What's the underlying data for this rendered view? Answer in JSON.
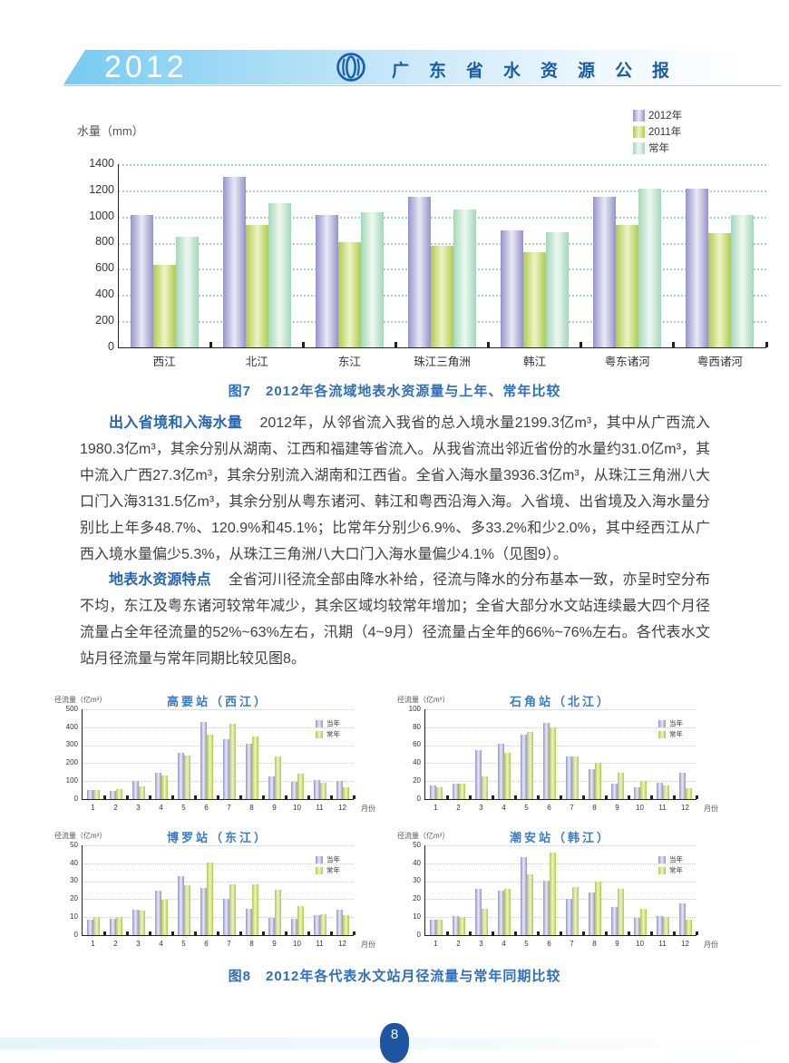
{
  "header": {
    "year": "2012",
    "title": "广东省水资源公报",
    "logo": "water-resources-logo"
  },
  "colors": {
    "accent_blue": "#1a5ca8",
    "caption_blue": "#2f6fbe",
    "lead_blue": "#2565b0",
    "grid_green": "#9fd8be",
    "footer_blue": "#1e55a3",
    "bar_purple_edge": "#9694c8",
    "bar_purple_center": "#e9e9f6",
    "bar_green_edge": "#b0cc49",
    "bar_green_center": "#eef3ca",
    "bar_teal_edge": "#a5d6b9",
    "bar_teal_center": "#edf9f1"
  },
  "captions": {
    "fig7": "图7　2012年各流域地表水资源量与上年、常年比较",
    "fig8": "图8　2012年各代表水文站月径流量与常年同期比较"
  },
  "sections": [
    {
      "lead": "出入省境和入海水量",
      "text": "2012年，从邻省流入我省的总入境水量2199.3亿m³，其中从广西流入1980.3亿m³，其余分别从湖南、江西和福建等省流入。从我省流出邻近省份的水量约31.0亿m³，其中流入广西27.3亿m³，其余分别流入湖南和江西省。全省入海水量3936.3亿m³，从珠江三角洲八大口门入海3131.5亿m³，其余分别从粤东诸河、韩江和粤西沿海入海。入省境、出省境及入海水量分别比上年多48.7%、120.9%和45.1%；比常年分别少6.9%、多33.2%和少2.0%，其中经西江从广西入境水量偏少5.3%，从珠江三角洲八大口门入海水量偏少4.1%（见图9）。"
    },
    {
      "lead": "地表水资源特点",
      "text": "全省河川径流全部由降水补给，径流与降水的分布基本一致，亦呈时空分布不均，东江及粤东诸河较常年减少，其余区域均较常年增加；全省大部分水文站连续最大四个月径流量占全年径流量的52%~63%左右，汛期（4~9月）径流量占全年的66%~76%左右。各代表水文站月径流量与常年同期比较见图8。"
    }
  ],
  "chart_data": [
    {
      "id": "fig7",
      "type": "bar",
      "title": "",
      "ylabel": "水量（mm）",
      "xlabel": "",
      "ylim": [
        0,
        1400
      ],
      "ystep": 200,
      "grid": "dotted",
      "legend_position": "top-right",
      "categories": [
        "西江",
        "北江",
        "东江",
        "珠江三角洲",
        "韩江",
        "粤东诸河",
        "粤西诸河"
      ],
      "series": [
        {
          "name": "2012年",
          "color": "purple",
          "values": [
            1015,
            1300,
            1010,
            1150,
            895,
            1150,
            1210
          ]
        },
        {
          "name": "2011年",
          "color": "green",
          "values": [
            630,
            935,
            805,
            775,
            730,
            935,
            870
          ]
        },
        {
          "name": "常年",
          "color": "teal",
          "values": [
            845,
            1100,
            1035,
            1055,
            880,
            1215,
            1010
          ]
        }
      ]
    },
    {
      "id": "fig8-gaoyao",
      "type": "bar",
      "title": "高要站（西江）",
      "ylabel": "径流量（亿m³）",
      "xlabel": "月份",
      "ylim": [
        0,
        500
      ],
      "ystep": 100,
      "grid": "dotted",
      "legend_position": "right",
      "categories": [
        "1",
        "2",
        "3",
        "4",
        "5",
        "6",
        "7",
        "8",
        "9",
        "10",
        "11",
        "12"
      ],
      "series": [
        {
          "name": "当年",
          "color": "purple",
          "values": [
            50,
            45,
            100,
            148,
            260,
            430,
            332,
            308,
            128,
            95,
            108,
            103
          ]
        },
        {
          "name": "常年",
          "color": "green",
          "values": [
            50,
            55,
            70,
            132,
            243,
            357,
            420,
            347,
            235,
            143,
            93,
            65
          ]
        }
      ]
    },
    {
      "id": "fig8-shijiao",
      "type": "bar",
      "title": "石角站（北江）",
      "ylabel": "径流量（亿m³）",
      "xlabel": "月份",
      "ylim": [
        0,
        100
      ],
      "ystep": 20,
      "grid": "dotted",
      "legend_position": "right",
      "categories": [
        "1",
        "2",
        "3",
        "4",
        "5",
        "6",
        "7",
        "8",
        "9",
        "10",
        "11",
        "12"
      ],
      "series": [
        {
          "name": "当年",
          "color": "purple",
          "values": [
            15,
            17,
            55,
            62,
            72,
            85,
            47,
            33,
            17,
            13,
            18,
            29
          ]
        },
        {
          "name": "常年",
          "color": "green",
          "values": [
            13,
            17,
            25,
            52,
            75,
            80,
            47,
            40,
            29,
            20,
            15,
            12
          ]
        }
      ]
    },
    {
      "id": "fig8-boluo",
      "type": "bar",
      "title": "博罗站（东江）",
      "ylabel": "径流量（亿m³）",
      "xlabel": "月份",
      "ylim": [
        0,
        50
      ],
      "ystep": 10,
      "grid": "dotted",
      "legend_position": "right",
      "categories": [
        "1",
        "2",
        "3",
        "4",
        "5",
        "6",
        "7",
        "8",
        "9",
        "10",
        "11",
        "12"
      ],
      "series": [
        {
          "name": "当年",
          "color": "purple",
          "values": [
            8.5,
            9,
            14,
            24.5,
            33,
            26.5,
            20,
            14.5,
            9.5,
            9,
            11,
            14
          ]
        },
        {
          "name": "常年",
          "color": "green",
          "values": [
            10,
            10,
            13.5,
            19.5,
            28,
            40.5,
            28.5,
            28.5,
            25.5,
            16,
            11.5,
            11
          ]
        }
      ]
    },
    {
      "id": "fig8-chaoan",
      "type": "bar",
      "title": "潮安站（韩江）",
      "ylabel": "径流量（亿m³）",
      "xlabel": "月份",
      "ylim": [
        0,
        50
      ],
      "ystep": 10,
      "grid": "dotted",
      "legend_position": "right",
      "categories": [
        "1",
        "2",
        "3",
        "4",
        "5",
        "6",
        "7",
        "8",
        "9",
        "10",
        "11",
        "12"
      ],
      "series": [
        {
          "name": "当年",
          "color": "purple",
          "values": [
            8.5,
            10.5,
            26,
            24.5,
            43.5,
            30.5,
            20,
            23.5,
            15.5,
            9.5,
            10.5,
            17.5
          ]
        },
        {
          "name": "常年",
          "color": "green",
          "values": [
            8.5,
            10,
            14.5,
            26,
            34,
            46,
            27,
            30,
            26,
            14.5,
            10,
            8.5
          ]
        }
      ]
    }
  ],
  "footer": {
    "page": "8"
  }
}
